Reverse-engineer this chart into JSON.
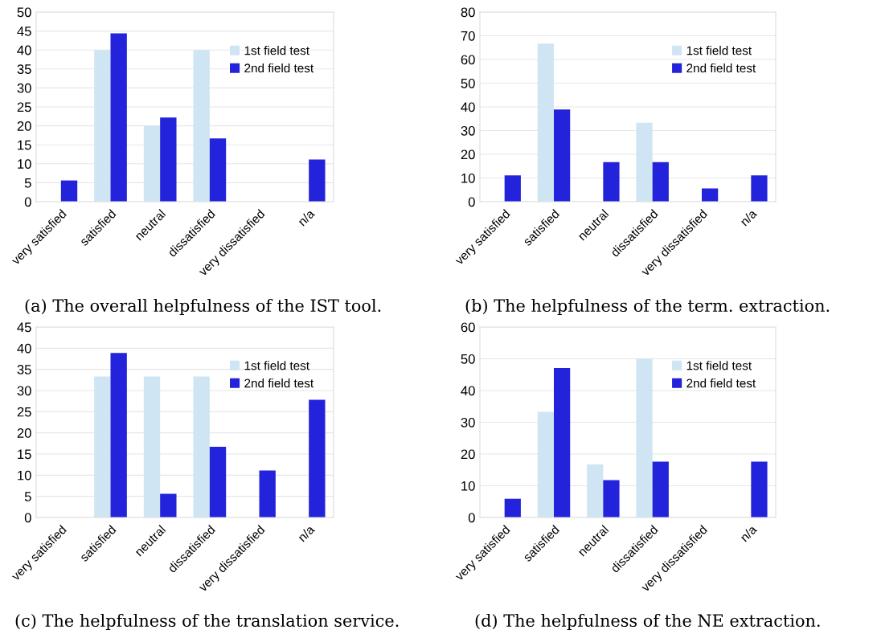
{
  "chart_data": [
    {
      "type": "bar",
      "categories": [
        "very satisfied",
        "satisfied",
        "neutral",
        "dissatisfied",
        "very dissatisfied",
        "n/a"
      ],
      "ylim": [
        0,
        50
      ],
      "yticks": [
        0,
        5,
        10,
        15,
        20,
        25,
        30,
        35,
        40,
        45,
        50
      ],
      "grid": "y",
      "legend": "top right",
      "annotations": [
        "(a) The overall helpfulness of the IST tool."
      ],
      "series": [
        {
          "name": "1st field test",
          "color": "#cfe5f3",
          "values": [
            0,
            40,
            20,
            40,
            0,
            0
          ]
        },
        {
          "name": "2nd field test",
          "color": "#2323dc",
          "values": [
            5.6,
            44.4,
            22.2,
            16.7,
            0,
            11.1
          ]
        }
      ]
    },
    {
      "type": "bar",
      "categories": [
        "very satisfied",
        "satisfied",
        "neutral",
        "dissatisfied",
        "very dissatisfied",
        "n/a"
      ],
      "ylim": [
        0,
        80
      ],
      "yticks": [
        0,
        10,
        20,
        30,
        40,
        50,
        60,
        70,
        80
      ],
      "grid": "y",
      "legend": "top right",
      "annotations": [
        "(b) The helpfulness of the term. extraction."
      ],
      "series": [
        {
          "name": "1st field test",
          "color": "#cfe5f3",
          "values": [
            0,
            66.7,
            0,
            33.3,
            0,
            0
          ]
        },
        {
          "name": "2nd field test",
          "color": "#2323dc",
          "values": [
            11.1,
            38.9,
            16.7,
            16.7,
            5.6,
            11.1
          ]
        }
      ]
    },
    {
      "type": "bar",
      "categories": [
        "very satisfied",
        "satisfied",
        "neutral",
        "dissatisfied",
        "very dissatisfied",
        "n/a"
      ],
      "ylim": [
        0,
        45
      ],
      "yticks": [
        0,
        5,
        10,
        15,
        20,
        25,
        30,
        35,
        40,
        45
      ],
      "grid": "y",
      "legend": "top right",
      "annotations": [
        "(c) The helpfulness of the translation service."
      ],
      "series": [
        {
          "name": "1st field test",
          "color": "#cfe5f3",
          "values": [
            0,
            33.3,
            33.3,
            33.3,
            0,
            0
          ]
        },
        {
          "name": "2nd field test",
          "color": "#2323dc",
          "values": [
            0,
            38.9,
            5.6,
            16.7,
            11.1,
            27.8
          ]
        }
      ]
    },
    {
      "type": "bar",
      "categories": [
        "very satisfied",
        "satisfied",
        "neutral",
        "dissatisfied",
        "very dissatisfied",
        "n/a"
      ],
      "ylim": [
        0,
        60
      ],
      "yticks": [
        0,
        10,
        20,
        30,
        40,
        50,
        60
      ],
      "grid": "y",
      "legend": "top right",
      "annotations": [
        "(d) The helpfulness of the NE extraction."
      ],
      "series": [
        {
          "name": "1st field test",
          "color": "#cfe5f3",
          "values": [
            0,
            33.3,
            16.7,
            50,
            0,
            0
          ]
        },
        {
          "name": "2nd field test",
          "color": "#2323dc",
          "values": [
            5.9,
            47.1,
            11.8,
            17.6,
            0,
            17.6
          ]
        }
      ]
    }
  ]
}
